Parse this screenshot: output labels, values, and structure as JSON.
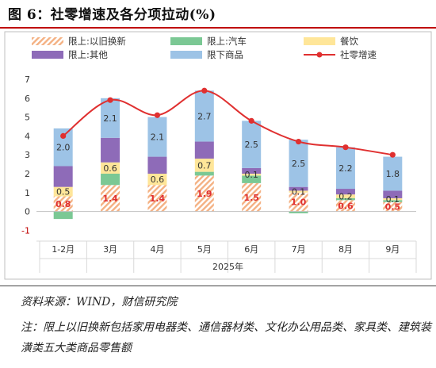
{
  "figure_title": "图 6：社零增速及各分项拉动(%)",
  "source": "资料来源：WIND，财信研究院",
  "note": "注：限上以旧换新包括家用电器类、通信器材类、文化办公用品类、家具类、建筑装潢类五大类商品零售额",
  "colors": {
    "trade_in": "#f4b183",
    "auto": "#7bc894",
    "catering": "#ffe699",
    "other": "#8e6bb8",
    "below": "#9dc3e6",
    "line": "#e03030",
    "label_red": "#e03030",
    "label_dark": "#333333"
  },
  "chart_data": {
    "type": "bar",
    "stacked": true,
    "categories": [
      "1-2月",
      "3月",
      "4月",
      "5月",
      "6月",
      "7月",
      "8月",
      "9月"
    ],
    "xlabel": "2025年",
    "ylim": [
      -1,
      7
    ],
    "yticks": [
      -1,
      0,
      1,
      2,
      3,
      4,
      5,
      6,
      7
    ],
    "grid": false,
    "legend": "top",
    "series": [
      {
        "name": "限上:以旧换新",
        "key": "trade_in",
        "values": [
          0.8,
          1.4,
          1.4,
          1.9,
          1.5,
          1.0,
          0.6,
          0.5
        ]
      },
      {
        "name": "限上:汽车",
        "key": "auto",
        "values": [
          -0.4,
          0.6,
          0.0,
          0.2,
          0.4,
          -0.1,
          0.1,
          0.1
        ]
      },
      {
        "name": "餐饮",
        "key": "catering",
        "values": [
          0.5,
          0.6,
          0.6,
          0.7,
          0.1,
          0.1,
          0.2,
          0.1
        ]
      },
      {
        "name": "限上:其他",
        "key": "other",
        "values": [
          1.1,
          1.3,
          0.9,
          0.9,
          0.3,
          0.2,
          0.3,
          0.4
        ]
      },
      {
        "name": "限下商品",
        "key": "below",
        "values": [
          2.0,
          2.1,
          2.1,
          2.7,
          2.5,
          2.5,
          2.2,
          1.8
        ]
      }
    ],
    "line": {
      "name": "社零增速",
      "values": [
        4.0,
        5.9,
        5.1,
        6.4,
        4.8,
        3.7,
        3.4,
        3.0
      ]
    },
    "data_labels": [
      {
        "series": "trade_in",
        "labels": [
          "0.8",
          "1.4",
          "1.4",
          "1.9",
          "1.5",
          "1.0",
          "0.6",
          "0.5"
        ]
      },
      {
        "series": "catering",
        "labels": [
          "0.5",
          "0.6",
          "0.6",
          "0.7",
          "0.1",
          "0.1",
          "0.2",
          "0.1"
        ]
      },
      {
        "series": "below",
        "labels": [
          "2.0",
          "2.1",
          "2.1",
          "2.7",
          "2.5",
          "2.5",
          "2.2",
          "1.8"
        ]
      }
    ]
  }
}
